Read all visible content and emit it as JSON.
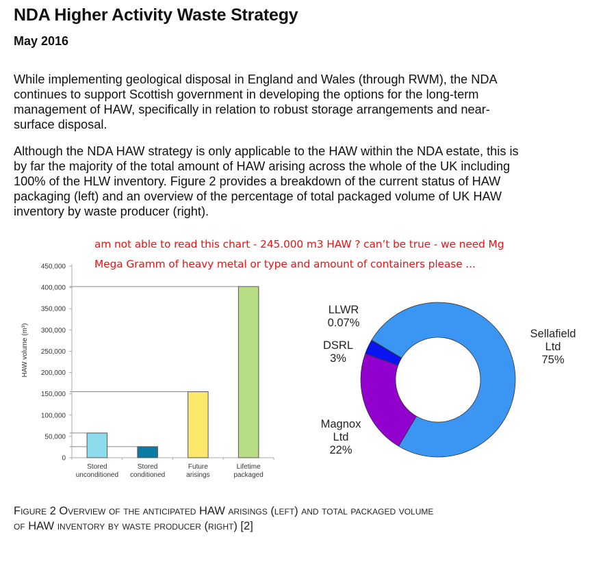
{
  "document": {
    "title": "NDA Higher Activity Waste Strategy",
    "date": "May 2016",
    "paragraphs": [
      [
        "While implementing geological disposal in England and Wales (through RWM), the NDA",
        "continues to support Scottish government in developing the options for the long-term",
        "management of HAW, specifically in relation to robust storage arrangements and near-",
        "surface disposal."
      ],
      [
        "Although the NDA HAW strategy is only applicable to the HAW within the NDA estate, this is",
        "by far the majority of the total amount of HAW arising across the whole of the UK including",
        "100% of the HLW inventory. Figure 2 provides a breakdown of the current status of HAW",
        "packaging (left) and an overview of the percentage of total packaged volume of UK HAW",
        "inventory by waste producer (right)."
      ]
    ],
    "annotation": {
      "lines": [
        "am not able to read this chart - 245.000 m3 HAW ? can’t be true - we need Mg",
        "Mega Gramm of heavy metal or type and amount of containers please ..."
      ],
      "color": "#ee1111"
    },
    "caption": {
      "line1": "Figure 2  Overview of the anticipated HAW arisings (left) and total packaged volume",
      "line2": "of HAW inventory by waste producer (right) [2]"
    }
  },
  "chart_data": [
    {
      "type": "bar",
      "title": "",
      "xlabel": "",
      "ylabel": "HAW volume (m³)",
      "ylim": [
        0,
        450000
      ],
      "yticks": [
        0,
        50000,
        100000,
        150000,
        200000,
        250000,
        300000,
        350000,
        400000,
        450000
      ],
      "ytick_labels": [
        "0",
        "50,000",
        "100,000",
        "150,000",
        "200,000",
        "250,000",
        "300,000",
        "350,000",
        "400,000",
        "450,000"
      ],
      "categories": [
        [
          "Stored",
          "unconditioned"
        ],
        [
          "Stored",
          "conditioned"
        ],
        [
          "Future",
          "arisings"
        ],
        [
          "Lifetime",
          "packaged"
        ]
      ],
      "values": [
        58000,
        26000,
        155000,
        402000
      ],
      "colors": [
        "#8ddcec",
        "#0a7aa6",
        "#fbe86a",
        "#b7de84"
      ],
      "reference_lines": [
        402000,
        155000,
        58000,
        26000
      ],
      "grid": false
    },
    {
      "type": "pie",
      "variant": "donut",
      "title": "",
      "slices": [
        {
          "label": "Sellafield Ltd",
          "label_lines": [
            "Sellafield",
            "Ltd",
            "75%"
          ],
          "value": 75,
          "color": "#3a96f2"
        },
        {
          "label": "Magnox Ltd",
          "label_lines": [
            "Magnox",
            "Ltd",
            "22%"
          ],
          "value": 22,
          "color": "#9100cc"
        },
        {
          "label": "DSRL",
          "label_lines": [
            "DSRL",
            "3%"
          ],
          "value": 3,
          "color": "#0a14f0"
        },
        {
          "label": "LLWR",
          "label_lines": [
            "LLWR",
            "0.07%"
          ],
          "value": 0.07,
          "color": "#3a96f2"
        }
      ]
    }
  ]
}
